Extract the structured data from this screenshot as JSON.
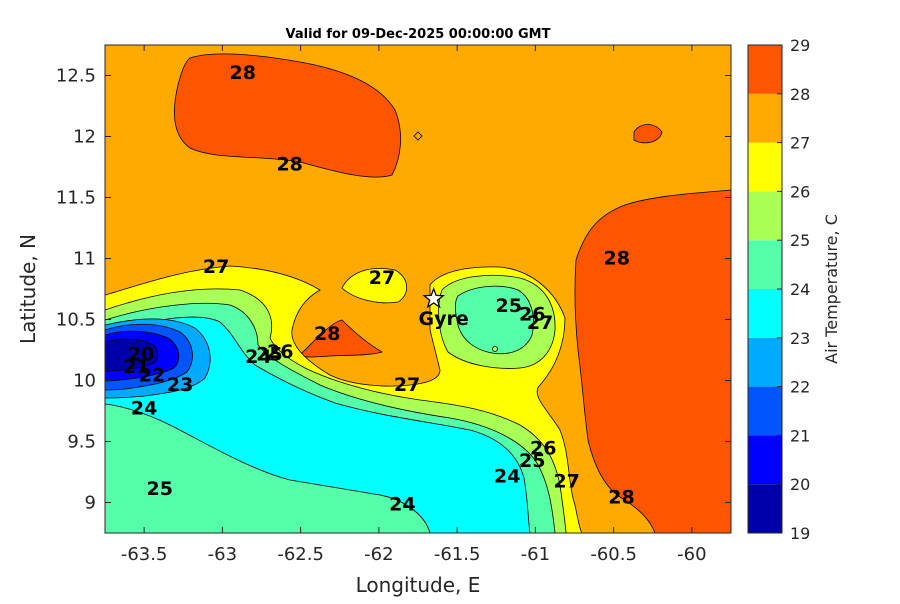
{
  "chart_data": {
    "type": "heatmap",
    "title": "Valid for 09-Dec-2025 00:00:00 GMT",
    "xlabel": "Longitude, E",
    "ylabel": "Latitude, N",
    "xlim": [
      -63.75,
      -59.75
    ],
    "ylim": [
      8.75,
      12.75
    ],
    "x_ticks": [
      -63.5,
      -63,
      -62.5,
      -62,
      -61.5,
      -61,
      -60.5,
      -60
    ],
    "y_ticks": [
      9,
      9.5,
      10,
      10.5,
      11,
      11.5,
      12,
      12.5
    ],
    "colorbar": {
      "label": "Air Temperature, C",
      "levels": [
        19,
        20,
        21,
        22,
        23,
        24,
        25,
        26,
        27,
        28,
        29
      ],
      "colors": [
        "#0000aa",
        "#0000ff",
        "#0055ff",
        "#00aaff",
        "#00ffff",
        "#55ffaa",
        "#aaff55",
        "#ffff00",
        "#ffaa00",
        "#ff5500",
        "#ff0000"
      ]
    },
    "contour_labels": [
      {
        "text": "28",
        "lon": -62.87,
        "lat": 12.53
      },
      {
        "text": "28",
        "lon": -62.57,
        "lat": 11.78
      },
      {
        "text": "27",
        "lon": -63.04,
        "lat": 10.94
      },
      {
        "text": "27",
        "lon": -61.98,
        "lat": 10.85
      },
      {
        "text": "28",
        "lon": -60.48,
        "lat": 11.01
      },
      {
        "text": "28",
        "lon": -62.33,
        "lat": 10.39
      },
      {
        "text": "27",
        "lon": -61.82,
        "lat": 9.97
      },
      {
        "text": "25",
        "lon": -61.17,
        "lat": 10.62
      },
      {
        "text": "26",
        "lon": -61.02,
        "lat": 10.55
      },
      {
        "text": "27",
        "lon": -60.97,
        "lat": 10.48
      },
      {
        "text": "20",
        "lon": -63.52,
        "lat": 10.22
      },
      {
        "text": "21",
        "lon": -63.55,
        "lat": 10.12
      },
      {
        "text": "22",
        "lon": -63.45,
        "lat": 10.05
      },
      {
        "text": "23",
        "lon": -63.27,
        "lat": 9.97
      },
      {
        "text": "24",
        "lon": -63.5,
        "lat": 9.78
      },
      {
        "text": "24",
        "lon": -62.77,
        "lat": 10.2
      },
      {
        "text": "25",
        "lon": -62.7,
        "lat": 10.22
      },
      {
        "text": "26",
        "lon": -62.63,
        "lat": 10.24
      },
      {
        "text": "25",
        "lon": -63.4,
        "lat": 9.12
      },
      {
        "text": "24",
        "lon": -61.85,
        "lat": 8.99
      },
      {
        "text": "24",
        "lon": -61.18,
        "lat": 9.22
      },
      {
        "text": "25",
        "lon": -61.02,
        "lat": 9.35
      },
      {
        "text": "26",
        "lon": -60.95,
        "lat": 9.45
      },
      {
        "text": "27",
        "lon": -60.8,
        "lat": 9.18
      },
      {
        "text": "28",
        "lon": -60.45,
        "lat": 9.05
      }
    ],
    "marker": {
      "symbol": "star",
      "label": "Gyre",
      "lon": -61.65,
      "lat": 10.67
    }
  }
}
